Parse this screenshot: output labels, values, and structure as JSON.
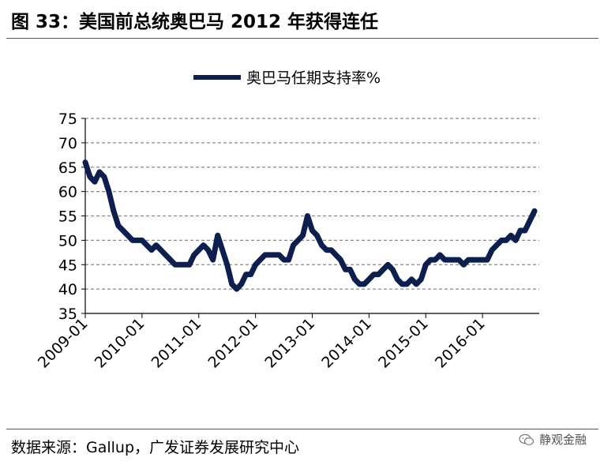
{
  "figure": {
    "title": "图 33：美国前总统奥巴马 2012 年获得连任",
    "source": "数据来源：Gallup，广发证券发展研究中心",
    "watermark": "静观金融",
    "watermark_icon": "wechat-icon"
  },
  "chart_data": {
    "type": "line",
    "title": "",
    "xlabel": "",
    "ylabel": "",
    "legend": {
      "position": "top-center",
      "entries": [
        "奥巴马任期支持率%"
      ]
    },
    "grid": {
      "horizontal": true,
      "style": "dashed"
    },
    "ylim": [
      35,
      75
    ],
    "yticks": [
      35,
      40,
      45,
      50,
      55,
      60,
      65,
      70,
      75
    ],
    "xlim": [
      "2009-01",
      "2017-01"
    ],
    "xticks": [
      "2009-01",
      "2010-01",
      "2011-01",
      "2012-01",
      "2013-01",
      "2014-01",
      "2015-01",
      "2016-01"
    ],
    "color": "#0d1f4f",
    "series": [
      {
        "name": "奥巴马任期支持率%",
        "x": [
          "2009-01",
          "2009-02",
          "2009-03",
          "2009-04",
          "2009-05",
          "2009-06",
          "2009-07",
          "2009-08",
          "2009-09",
          "2009-10",
          "2009-11",
          "2009-12",
          "2010-01",
          "2010-02",
          "2010-03",
          "2010-04",
          "2010-05",
          "2010-06",
          "2010-07",
          "2010-08",
          "2010-09",
          "2010-10",
          "2010-11",
          "2010-12",
          "2011-01",
          "2011-02",
          "2011-03",
          "2011-04",
          "2011-05",
          "2011-06",
          "2011-07",
          "2011-08",
          "2011-09",
          "2011-10",
          "2011-11",
          "2011-12",
          "2012-01",
          "2012-02",
          "2012-03",
          "2012-04",
          "2012-05",
          "2012-06",
          "2012-07",
          "2012-08",
          "2012-09",
          "2012-10",
          "2012-11",
          "2012-12",
          "2013-01",
          "2013-02",
          "2013-03",
          "2013-04",
          "2013-05",
          "2013-06",
          "2013-07",
          "2013-08",
          "2013-09",
          "2013-10",
          "2013-11",
          "2013-12",
          "2014-01",
          "2014-02",
          "2014-03",
          "2014-04",
          "2014-05",
          "2014-06",
          "2014-07",
          "2014-08",
          "2014-09",
          "2014-10",
          "2014-11",
          "2014-12",
          "2015-01",
          "2015-02",
          "2015-03",
          "2015-04",
          "2015-05",
          "2015-06",
          "2015-07",
          "2015-08",
          "2015-09",
          "2015-10",
          "2015-11",
          "2015-12",
          "2016-01",
          "2016-02",
          "2016-03",
          "2016-04",
          "2016-05",
          "2016-06",
          "2016-07",
          "2016-08",
          "2016-09",
          "2016-10",
          "2016-11",
          "2016-12"
        ],
        "values": [
          66,
          63,
          62,
          64,
          63,
          60,
          56,
          53,
          52,
          51,
          50,
          50,
          50,
          49,
          48,
          49,
          48,
          47,
          46,
          45,
          45,
          45,
          45,
          47,
          48,
          49,
          48,
          46,
          51,
          48,
          45,
          41,
          40,
          41,
          43,
          43,
          45,
          46,
          47,
          47,
          47,
          47,
          46,
          46,
          49,
          50,
          51,
          55,
          52,
          51,
          49,
          48,
          48,
          47,
          46,
          44,
          44,
          42,
          41,
          41,
          42,
          43,
          43,
          44,
          45,
          44,
          42,
          41,
          41,
          42,
          41,
          42,
          45,
          46,
          46,
          47,
          46,
          46,
          46,
          46,
          45,
          46,
          46,
          46,
          46,
          46,
          48,
          49,
          50,
          50,
          51,
          50,
          52,
          52,
          54,
          56
        ]
      }
    ]
  }
}
